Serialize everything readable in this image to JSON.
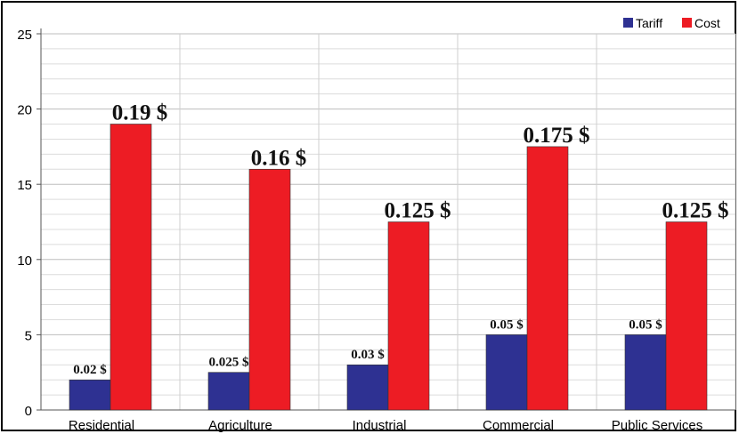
{
  "chart_data": {
    "type": "bar",
    "categories": [
      "Residential",
      "Agriculture",
      "Industrial",
      "Commercial",
      "Public Services"
    ],
    "series": [
      {
        "name": "Tariff",
        "color": "#2e3192",
        "values": [
          2,
          2.5,
          3,
          5,
          5
        ],
        "labels": [
          "0.02 $",
          "0.025 $",
          "0.03 $",
          "0.05 $",
          "0.05 $"
        ]
      },
      {
        "name": "Cost",
        "color": "#ed1c24",
        "values": [
          19,
          16,
          12.5,
          17.5,
          12.5
        ],
        "labels": [
          "0.19 $",
          "0.16 $",
          "0.125 $",
          "0.175 $",
          "0.125 $"
        ]
      }
    ],
    "ylim": [
      0,
      25
    ],
    "yticks": [
      "0",
      "5",
      "10",
      "15",
      "20",
      "25"
    ],
    "minor_grid_step": 1,
    "grid": true,
    "legend": "top-right"
  }
}
